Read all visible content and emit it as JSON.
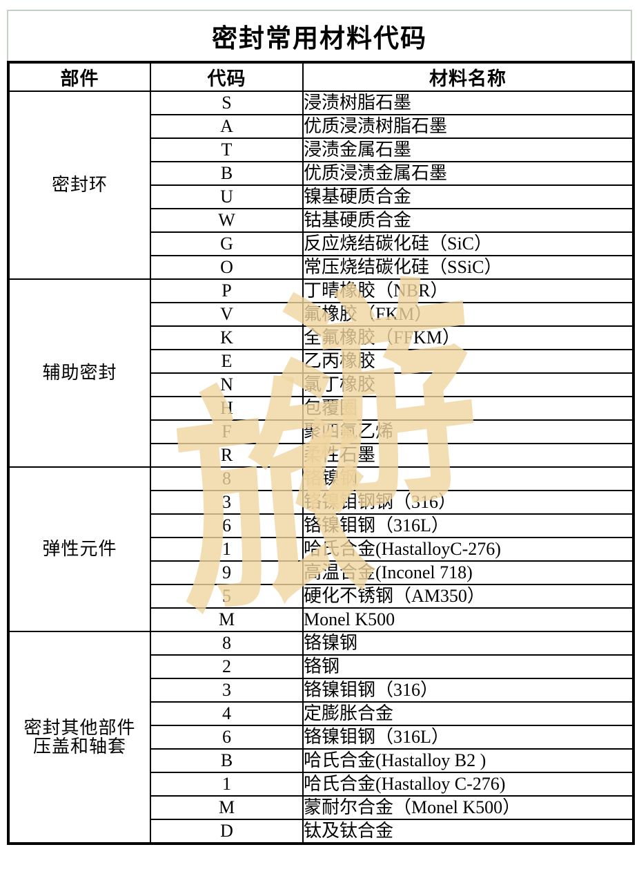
{
  "page": {
    "title": "密封常用材料代码",
    "watermark": {
      "chars": [
        "旅",
        "游"
      ],
      "color": "#f0d6a0"
    },
    "colors": {
      "background": "#ffffff",
      "table_border": "#000000",
      "title_border": "#c3d0c3",
      "text": "#000000"
    }
  },
  "table": {
    "headers": {
      "part": "部件",
      "code": "代码",
      "name": "材料名称"
    },
    "sections": [
      {
        "part": "密封环",
        "rows": [
          {
            "code": "S",
            "name": "浸渍树脂石墨"
          },
          {
            "code": "A",
            "name": "优质浸渍树脂石墨"
          },
          {
            "code": "T",
            "name": "浸渍金属石墨"
          },
          {
            "code": "B",
            "name": "优质浸渍金属石墨"
          },
          {
            "code": "U",
            "name": "镍基硬质合金"
          },
          {
            "code": "W",
            "name": "钴基硬质合金"
          },
          {
            "code": "G",
            "name": "反应烧结碳化硅（SiC）"
          },
          {
            "code": "O",
            "name": "常压烧结碳化硅（SSiC）"
          }
        ]
      },
      {
        "part": "辅助密封",
        "rows": [
          {
            "code": "P",
            "name": "丁晴橡胶（NBR）"
          },
          {
            "code": "V",
            "name": "氟橡胶（FKM）"
          },
          {
            "code": "K",
            "name": "全氟橡胶（FFKM）"
          },
          {
            "code": "E",
            "name": "乙丙橡胶"
          },
          {
            "code": "N",
            "name": "氯丁橡胶"
          },
          {
            "code": "H",
            "name": "包覆圈"
          },
          {
            "code": "F",
            "name": "聚四氟乙烯"
          },
          {
            "code": "R",
            "name": "柔性石墨"
          }
        ]
      },
      {
        "part": "弹性元件",
        "rows": [
          {
            "code": "8",
            "name": "铬镍钢"
          },
          {
            "code": "3",
            "name": "铬镍钼钢钢（316）"
          },
          {
            "code": "6",
            "name": "铬镍钼钢（316L）"
          },
          {
            "code": "1",
            "name": "哈氏合金(HastalloyC-276)"
          },
          {
            "code": "9",
            "name": "高温合金(Inconel 718)"
          },
          {
            "code": "5",
            "name": "硬化不锈钢（AM350）"
          },
          {
            "code": "M",
            "name": "Monel K500"
          }
        ]
      },
      {
        "part": "密封其他部件\n压盖和轴套",
        "rows": [
          {
            "code": "8",
            "name": "铬镍钢"
          },
          {
            "code": "2",
            "name": "铬钢"
          },
          {
            "code": "3",
            "name": "铬镍钼钢（316）"
          },
          {
            "code": "4",
            "name": "定膨胀合金"
          },
          {
            "code": "6",
            "name": "铬镍钼钢（316L）"
          },
          {
            "code": "B",
            "name": "哈氏合金(Hastalloy B2 )"
          },
          {
            "code": "1",
            "name": "哈氏合金(Hastalloy C-276)"
          },
          {
            "code": "M",
            "name": "蒙耐尔合金（Monel K500）"
          },
          {
            "code": "D",
            "name": "钛及钛合金"
          }
        ]
      }
    ]
  }
}
